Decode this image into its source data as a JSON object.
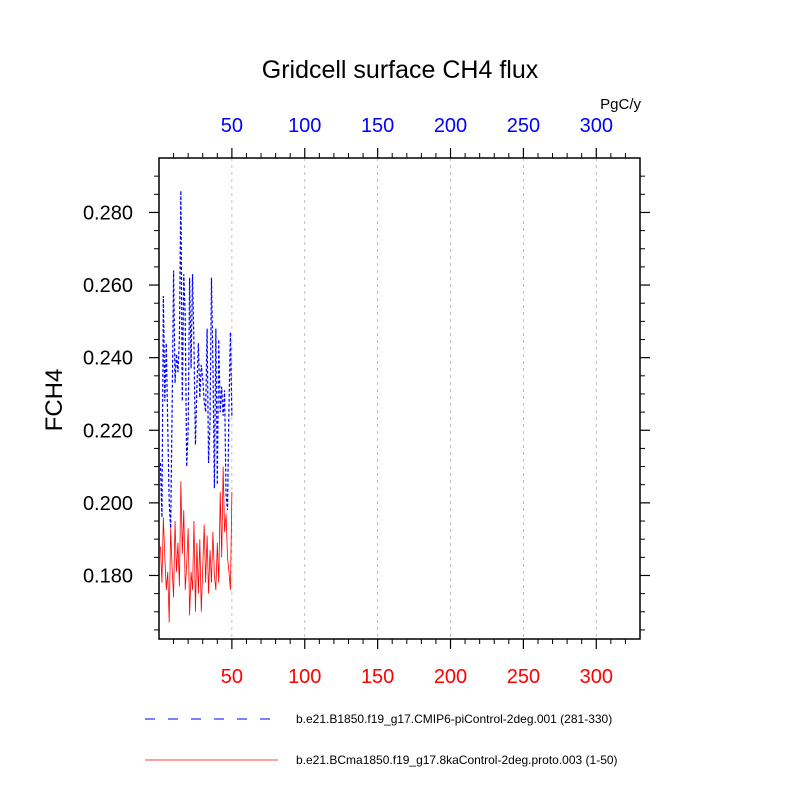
{
  "chart_data": {
    "type": "line",
    "title": "Gridcell surface CH4 flux",
    "ylabel": "FCH4",
    "units": "PgC/y",
    "xlim": [
      0,
      330
    ],
    "ylim": [
      0.1625,
      0.295
    ],
    "x_ticks": [
      50,
      100,
      150,
      200,
      250,
      300
    ],
    "y_ticks": [
      0.18,
      0.2,
      0.22,
      0.24,
      0.26,
      0.28
    ],
    "y_tick_labels": [
      "0.180",
      "0.200",
      "0.220",
      "0.240",
      "0.260",
      "0.280"
    ],
    "top_axis_color": "#0000ff",
    "bottom_axis_color": "#ff0000",
    "grid": "vertical-dashed",
    "legend_position": "bottom",
    "series": [
      {
        "name": "b.e21.B1850.f19_g17.CMIP6-piControl-2deg.001 (281-330)",
        "color": "#0000ff",
        "dash": "dashed",
        "x": [
          1,
          2,
          3,
          4,
          5,
          6,
          7,
          8,
          9,
          10,
          11,
          12,
          13,
          14,
          15,
          16,
          17,
          18,
          19,
          20,
          21,
          22,
          23,
          24,
          25,
          26,
          27,
          28,
          29,
          30,
          31,
          32,
          33,
          34,
          35,
          36,
          37,
          38,
          39,
          40,
          41,
          42,
          43,
          44,
          45,
          46,
          47,
          48,
          49,
          50
        ],
        "values": [
          0.211,
          0.196,
          0.257,
          0.228,
          0.244,
          0.221,
          0.2,
          0.193,
          0.226,
          0.264,
          0.233,
          0.241,
          0.236,
          0.245,
          0.286,
          0.228,
          0.263,
          0.251,
          0.21,
          0.22,
          0.262,
          0.237,
          0.263,
          0.243,
          0.216,
          0.232,
          0.244,
          0.229,
          0.238,
          0.234,
          0.228,
          0.225,
          0.248,
          0.211,
          0.222,
          0.262,
          0.238,
          0.204,
          0.248,
          0.205,
          0.245,
          0.225,
          0.232,
          0.224,
          0.231,
          0.202,
          0.198,
          0.226,
          0.247,
          0.224
        ]
      },
      {
        "name": "b.e21.BCma1850.f19_g17.8kaControl-2deg.proto.003 (1-50)",
        "color": "#ff0000",
        "dash": "solid",
        "x": [
          1,
          2,
          3,
          4,
          5,
          6,
          7,
          8,
          9,
          10,
          11,
          12,
          13,
          14,
          15,
          16,
          17,
          18,
          19,
          20,
          21,
          22,
          23,
          24,
          25,
          26,
          27,
          28,
          29,
          30,
          31,
          32,
          33,
          34,
          35,
          36,
          37,
          38,
          39,
          40,
          41,
          42,
          43,
          44,
          45,
          46,
          47,
          48,
          49,
          50
        ],
        "values": [
          0.188,
          0.178,
          0.196,
          0.185,
          0.176,
          0.181,
          0.167,
          0.193,
          0.182,
          0.174,
          0.195,
          0.181,
          0.189,
          0.177,
          0.206,
          0.186,
          0.198,
          0.176,
          0.183,
          0.193,
          0.169,
          0.181,
          0.176,
          0.195,
          0.17,
          0.189,
          0.175,
          0.19,
          0.17,
          0.182,
          0.194,
          0.178,
          0.191,
          0.175,
          0.187,
          0.178,
          0.192,
          0.18,
          0.176,
          0.189,
          0.178,
          0.203,
          0.185,
          0.21,
          0.192,
          0.197,
          0.185,
          0.181,
          0.176,
          0.203
        ]
      }
    ]
  }
}
